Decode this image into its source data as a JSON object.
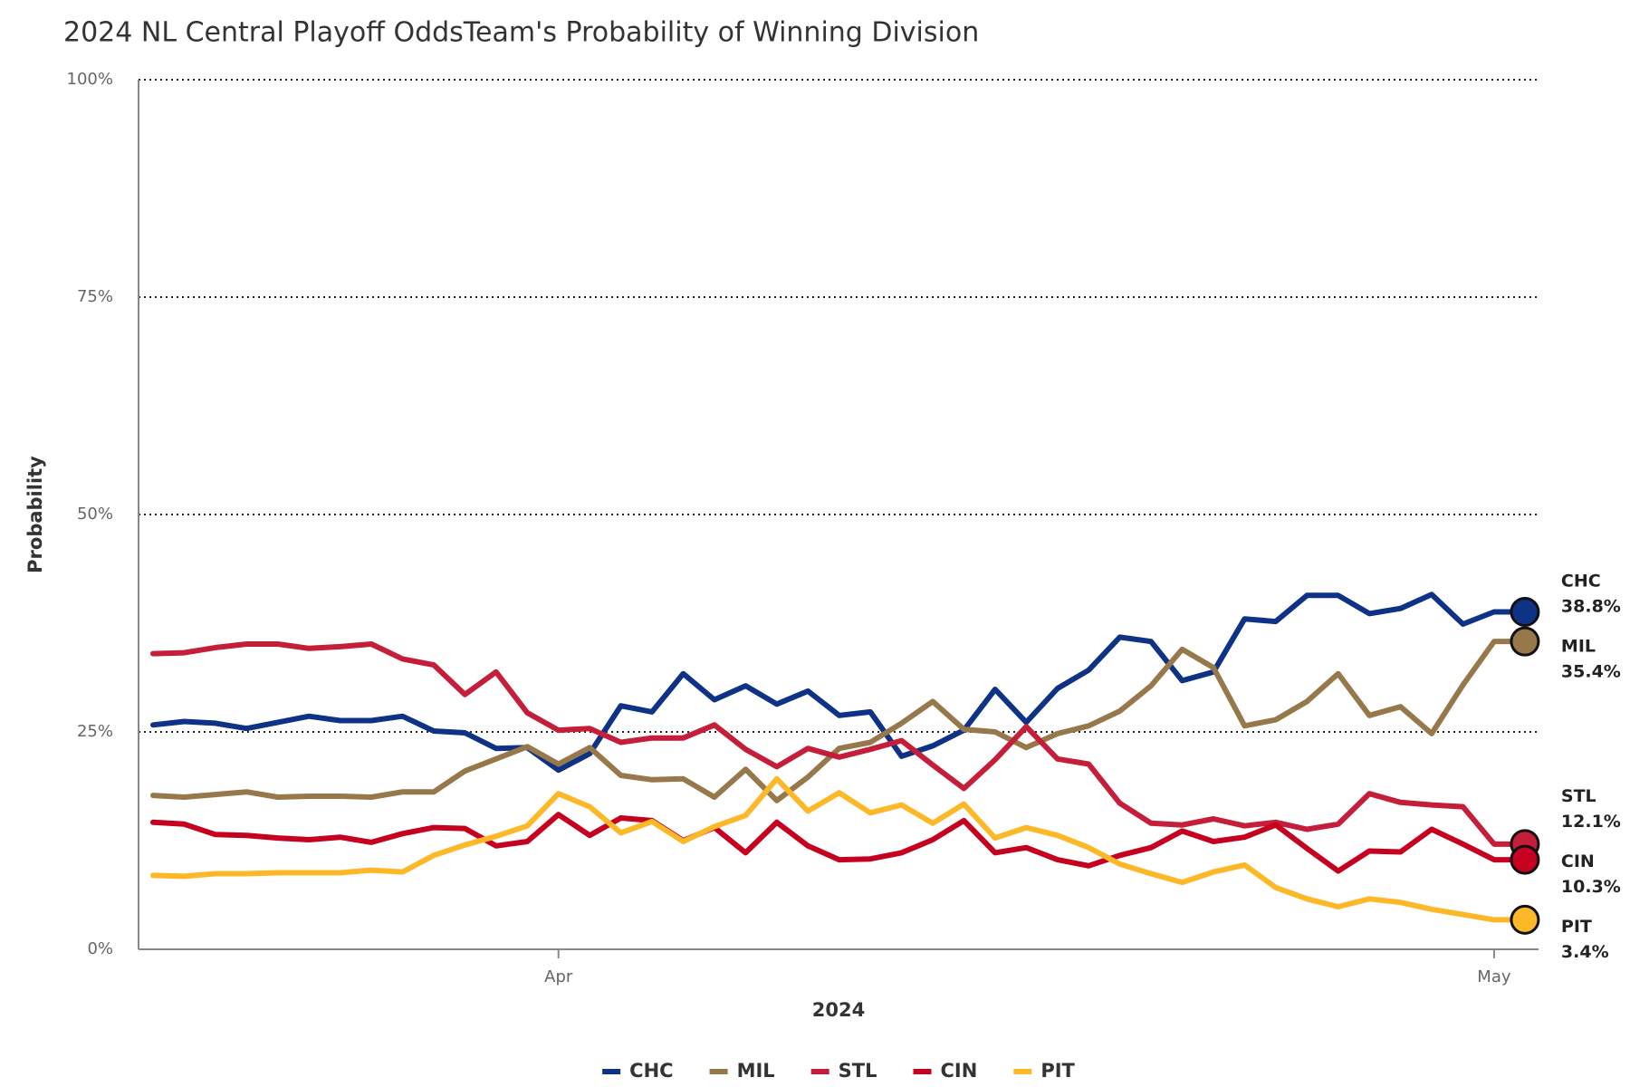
{
  "chart_data": {
    "type": "line",
    "title": "2024 NL Central Playoff OddsTeam's Probability of Winning Division",
    "x_label": "2024",
    "y_label": "Probability",
    "categories": [
      null,
      null,
      null,
      null,
      null,
      null,
      null,
      null,
      null,
      null,
      null,
      null,
      null,
      "Apr",
      null,
      null,
      null,
      null,
      null,
      null,
      null,
      null,
      null,
      null,
      null,
      null,
      null,
      null,
      null,
      null,
      null,
      null,
      null,
      null,
      null,
      null,
      null,
      null,
      null,
      null,
      null,
      null,
      null,
      "May"
    ],
    "ylim": [
      0,
      100
    ],
    "yticks": [
      {
        "value": 0,
        "label": "0%"
      },
      {
        "value": 25,
        "label": "25%"
      },
      {
        "value": 50,
        "label": "50%"
      },
      {
        "value": 75,
        "label": "75%"
      },
      {
        "value": 100,
        "label": "100%"
      }
    ],
    "grid": true,
    "legend": "bottom",
    "series": [
      {
        "name": "CHC",
        "color": "#0e3386",
        "end_label": "38.8%",
        "values": [
          25.8,
          26.2,
          26.0,
          25.4,
          26.1,
          26.8,
          26.3,
          26.3,
          26.8,
          25.1,
          24.9,
          23.1,
          23.2,
          20.6,
          22.5,
          28.0,
          27.3,
          31.7,
          28.7,
          30.3,
          28.2,
          29.7,
          26.9,
          27.3,
          22.2,
          23.4,
          25.2,
          29.9,
          26.1,
          30.0,
          32.1,
          35.9,
          35.4,
          30.9,
          31.9,
          38.0,
          37.7,
          40.7,
          40.7,
          38.6,
          39.2,
          40.8,
          37.4,
          38.8
        ]
      },
      {
        "name": "MIL",
        "color": "#96784a",
        "end_label": "35.4%",
        "values": [
          17.7,
          17.5,
          17.8,
          18.1,
          17.5,
          17.6,
          17.6,
          17.5,
          18.1,
          18.1,
          20.5,
          21.9,
          23.3,
          21.3,
          23.2,
          20.0,
          19.5,
          19.6,
          17.5,
          20.7,
          17.1,
          19.8,
          23.1,
          23.8,
          26.0,
          28.5,
          25.3,
          25.0,
          23.2,
          24.8,
          25.7,
          27.4,
          30.3,
          34.5,
          32.4,
          25.7,
          26.4,
          28.5,
          31.7,
          26.9,
          27.9,
          24.8,
          30.4,
          35.4
        ]
      },
      {
        "name": "STL",
        "color": "#c41e3a",
        "end_label": "12.1%",
        "values": [
          34.0,
          34.1,
          34.7,
          35.1,
          35.1,
          34.6,
          34.8,
          35.1,
          33.4,
          32.7,
          29.3,
          31.9,
          27.2,
          25.2,
          25.4,
          23.8,
          24.3,
          24.3,
          25.8,
          23.0,
          21.0,
          23.1,
          22.1,
          23.0,
          24.0,
          21.2,
          18.5,
          21.8,
          25.6,
          21.9,
          21.3,
          16.8,
          14.5,
          14.3,
          15.0,
          14.2,
          14.6,
          13.8,
          14.4,
          17.9,
          16.9,
          16.6,
          16.4,
          12.1
        ]
      },
      {
        "name": "CIN",
        "color": "#c6011f",
        "end_label": "10.3%",
        "values": [
          14.6,
          14.4,
          13.2,
          13.1,
          12.8,
          12.6,
          12.9,
          12.3,
          13.3,
          14.0,
          13.9,
          11.9,
          12.4,
          15.5,
          13.1,
          15.1,
          14.8,
          12.5,
          14.0,
          11.1,
          14.6,
          11.9,
          10.3,
          10.4,
          11.1,
          12.6,
          14.8,
          11.1,
          11.7,
          10.3,
          9.6,
          10.8,
          11.7,
          13.6,
          12.4,
          12.9,
          14.3,
          11.6,
          9.0,
          11.3,
          11.2,
          13.8,
          12.1,
          10.3
        ]
      },
      {
        "name": "PIT",
        "color": "#fdb827",
        "end_label": "3.4%",
        "values": [
          8.5,
          8.4,
          8.7,
          8.7,
          8.8,
          8.8,
          8.8,
          9.1,
          8.9,
          10.8,
          12.0,
          13.0,
          14.2,
          17.9,
          16.4,
          13.4,
          14.7,
          12.4,
          14.1,
          15.4,
          19.6,
          15.9,
          18.0,
          15.7,
          16.6,
          14.5,
          16.7,
          12.8,
          14.0,
          13.1,
          11.7,
          9.8,
          8.7,
          7.7,
          8.9,
          9.7,
          7.1,
          5.8,
          4.9,
          5.8,
          5.4,
          4.6,
          4.0,
          3.4
        ]
      }
    ]
  }
}
